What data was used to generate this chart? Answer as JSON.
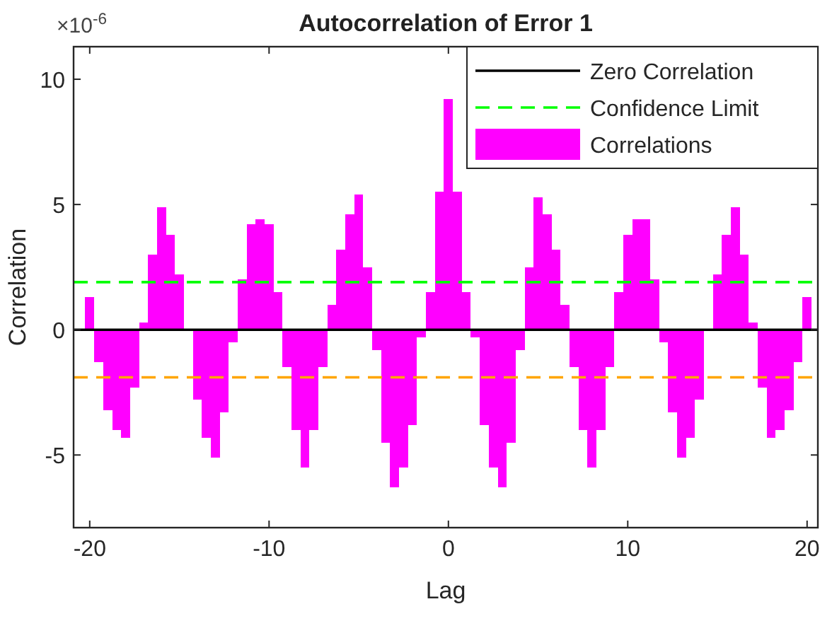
{
  "chart_data": {
    "type": "bar",
    "title": "Autocorrelation of Error 1",
    "xlabel": "Lag",
    "ylabel": "Correlation",
    "annotations": [
      "×10$^{-6}$"
    ],
    "x": [
      -20,
      -19.5,
      -19,
      -18.5,
      -18,
      -17.5,
      -17,
      -16.5,
      -16,
      -15.5,
      -15,
      -14.5,
      -14,
      -13.5,
      -13,
      -12.5,
      -12,
      -11.5,
      -11,
      -10.5,
      -10,
      -9.5,
      -9,
      -8.5,
      -8,
      -7.5,
      -7,
      -6.5,
      -6,
      -5.5,
      -5,
      -4.5,
      -4,
      -3.5,
      -3,
      -2.5,
      -2,
      -1.5,
      -1,
      -0.5,
      0,
      0.5,
      1,
      1.5,
      2,
      2.5,
      3,
      3.5,
      4,
      4.5,
      5,
      5.5,
      6,
      6.5,
      7,
      7.5,
      8,
      8.5,
      9,
      9.5,
      10,
      10.5,
      11,
      11.5,
      12,
      12.5,
      13,
      13.5,
      14,
      14.5,
      15,
      15.5,
      16,
      16.5,
      17,
      17.5,
      18,
      18.5,
      19,
      19.5,
      20
    ],
    "series": [
      {
        "name": "Correlations",
        "color": "#ff00ff",
        "values": [
          1.3,
          -1.3,
          -3.2,
          -4.0,
          -4.3,
          -2.3,
          0.3,
          3.0,
          4.9,
          3.8,
          2.2,
          0.0,
          -2.8,
          -4.3,
          -5.1,
          -3.3,
          -0.5,
          2.0,
          4.2,
          4.4,
          4.2,
          1.5,
          -1.5,
          -4.0,
          -5.5,
          -4.0,
          -1.5,
          1.0,
          3.2,
          4.6,
          5.4,
          2.5,
          -0.8,
          -4.5,
          -6.3,
          -5.5,
          -3.8,
          -0.3,
          1.5,
          5.5,
          9.2,
          5.5,
          1.5,
          -0.3,
          -3.8,
          -5.5,
          -6.3,
          -4.5,
          -0.8,
          2.5,
          5.3,
          4.6,
          3.2,
          1.0,
          -1.5,
          -4.0,
          -5.5,
          -4.0,
          -1.5,
          1.5,
          3.8,
          4.4,
          4.4,
          2.0,
          -0.5,
          -3.3,
          -5.1,
          -4.3,
          -2.8,
          0.0,
          2.2,
          3.8,
          4.9,
          3.0,
          0.3,
          -2.3,
          -4.3,
          -4.0,
          -3.2,
          -1.3,
          1.3
        ]
      }
    ],
    "xlim": [
      -20.9,
      20.6
    ],
    "xticks": [
      -20,
      -10,
      0,
      10,
      20
    ],
    "ylim": [
      -7.9,
      11.3
    ],
    "yticks": [
      -5,
      0,
      5,
      10
    ],
    "ref_lines": [
      {
        "axis": "y",
        "value": 0,
        "label": "Zero Correlation",
        "color": "#000000",
        "line_style": "solid"
      },
      {
        "axis": "y",
        "value": 1.9,
        "label": "Confidence Limit",
        "color": "#00ff00",
        "line_style": "dashed"
      },
      {
        "axis": "y",
        "value": -1.9,
        "color": "#ffa500",
        "line_style": "dashed"
      }
    ],
    "legend": "top right",
    "grid": false
  }
}
